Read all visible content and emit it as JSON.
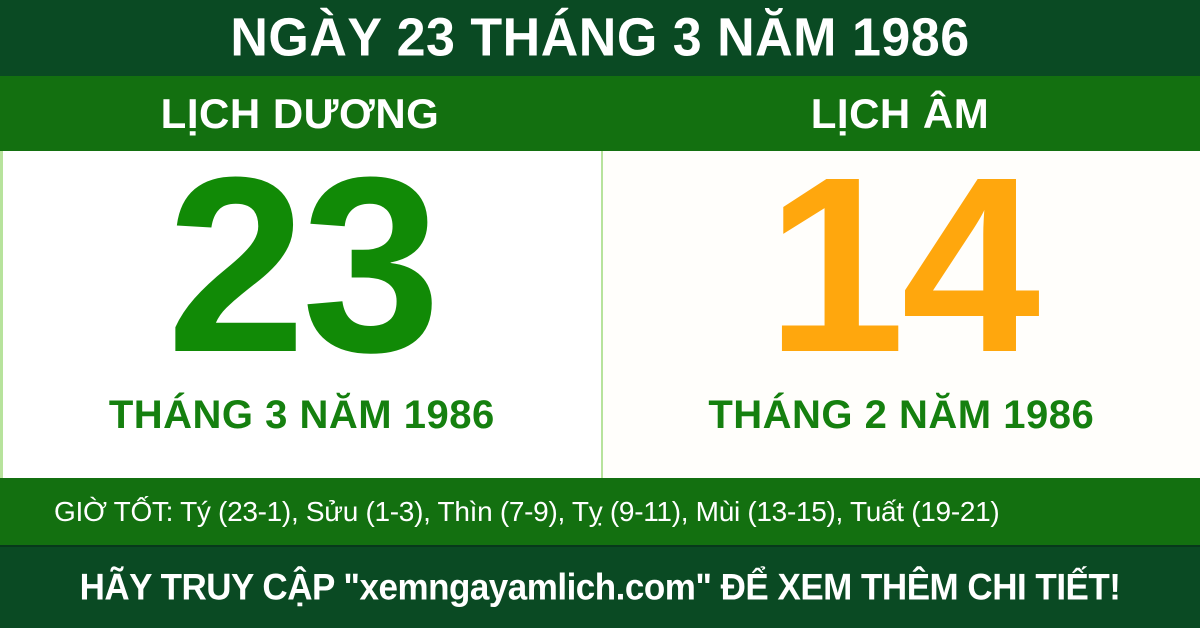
{
  "header": {
    "title": "NGÀY 23 THÁNG 3 NĂM 1986"
  },
  "solar": {
    "header": "LỊCH DƯƠNG",
    "day": "23",
    "month_year": "THÁNG 3 NĂM 1986"
  },
  "lunar": {
    "header": "LỊCH ÂM",
    "day": "14",
    "month_year": "THÁNG 2 NĂM 1986"
  },
  "good_hours": {
    "text": "GIỜ TỐT: Tý (23-1), Sửu (1-3), Thìn (7-9), Tỵ (9-11), Mùi (13-15), Tuất (19-21)"
  },
  "footer": {
    "text": "HÃY TRUY CẬP \"xemngayamlich.com\" ĐỂ XEM THÊM CHI TIẾT!"
  },
  "colors": {
    "dark_green": "#0a4a23",
    "band_green": "#137010",
    "day_green": "#118a06",
    "month_green": "#15800f",
    "day_orange": "#ffa70d",
    "divider_green": "#b7e39c",
    "text_white": "#ffffff",
    "panel_white": "#fffefb"
  }
}
